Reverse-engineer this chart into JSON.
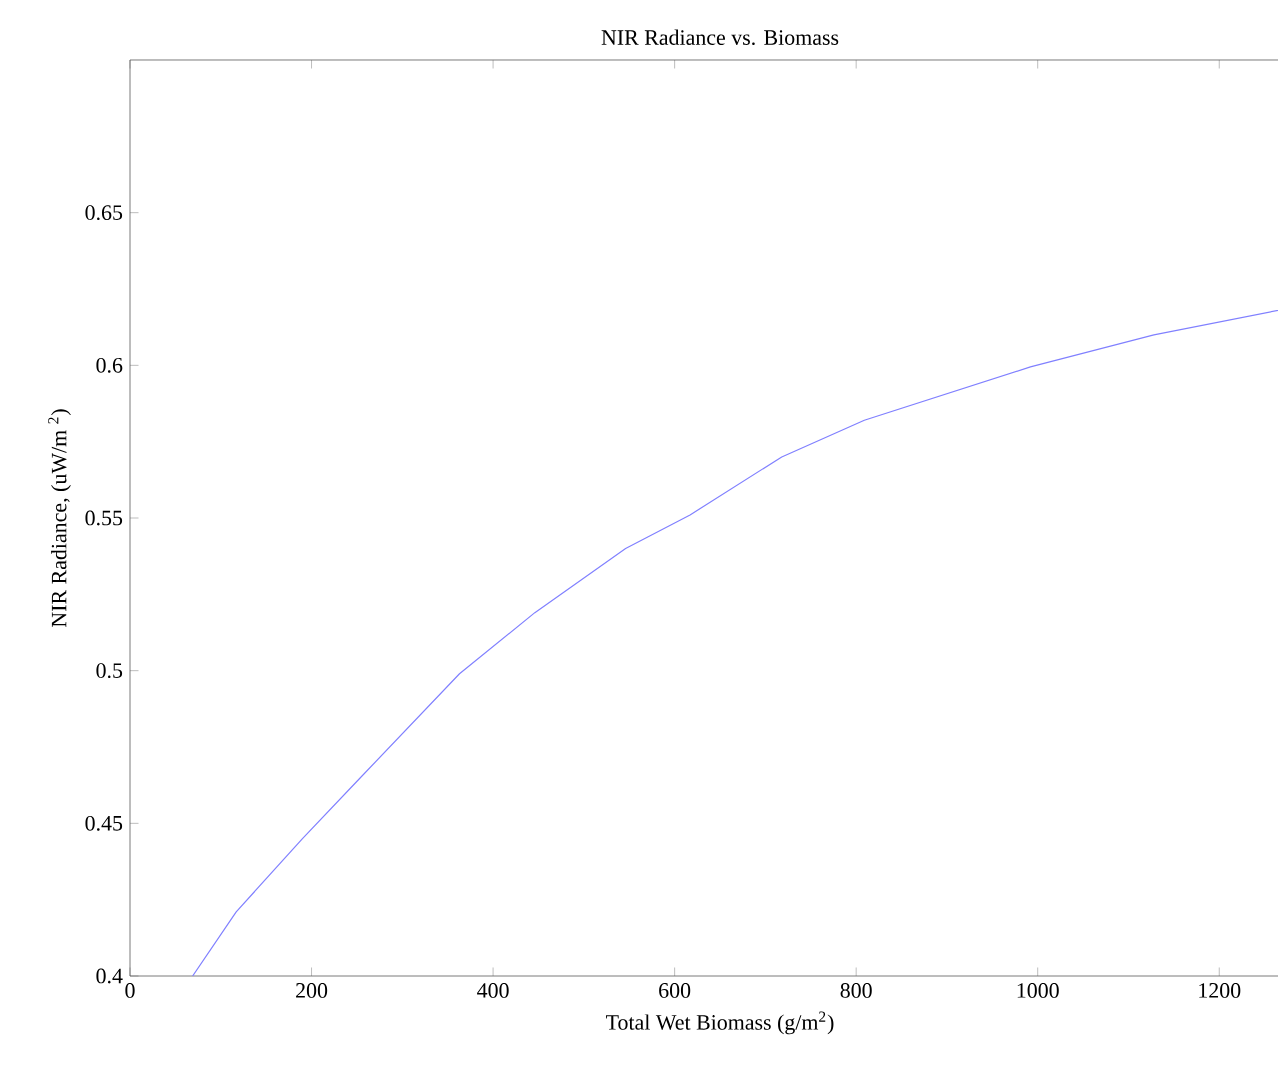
{
  "chart_data": {
    "type": "line",
    "title": "NIR Radiance vs. Biomass",
    "xlabel": "Total Wet Biomass (g/m$^{2}$)",
    "ylabel": "NIR Radiance, (uW/m $^{2}$)",
    "xlim": [
      0,
      1300
    ],
    "ylim": [
      0.4,
      0.7
    ],
    "xticks": [
      0,
      200,
      400,
      600,
      800,
      1000,
      1200
    ],
    "yticks": [
      0.4,
      0.45,
      0.5,
      0.55,
      0.6,
      0.65
    ],
    "series": [
      {
        "color": "#8080ff",
        "x": [
          69,
          117,
          190,
          254,
          363,
          446,
          546,
          617,
          718,
          809,
          992,
          1128,
          1282
        ],
        "values": [
          0.4,
          0.421,
          0.445,
          0.465,
          0.499,
          0.519,
          0.54,
          0.551,
          0.57,
          0.582,
          0.5995,
          0.61,
          0.619
        ]
      }
    ]
  }
}
